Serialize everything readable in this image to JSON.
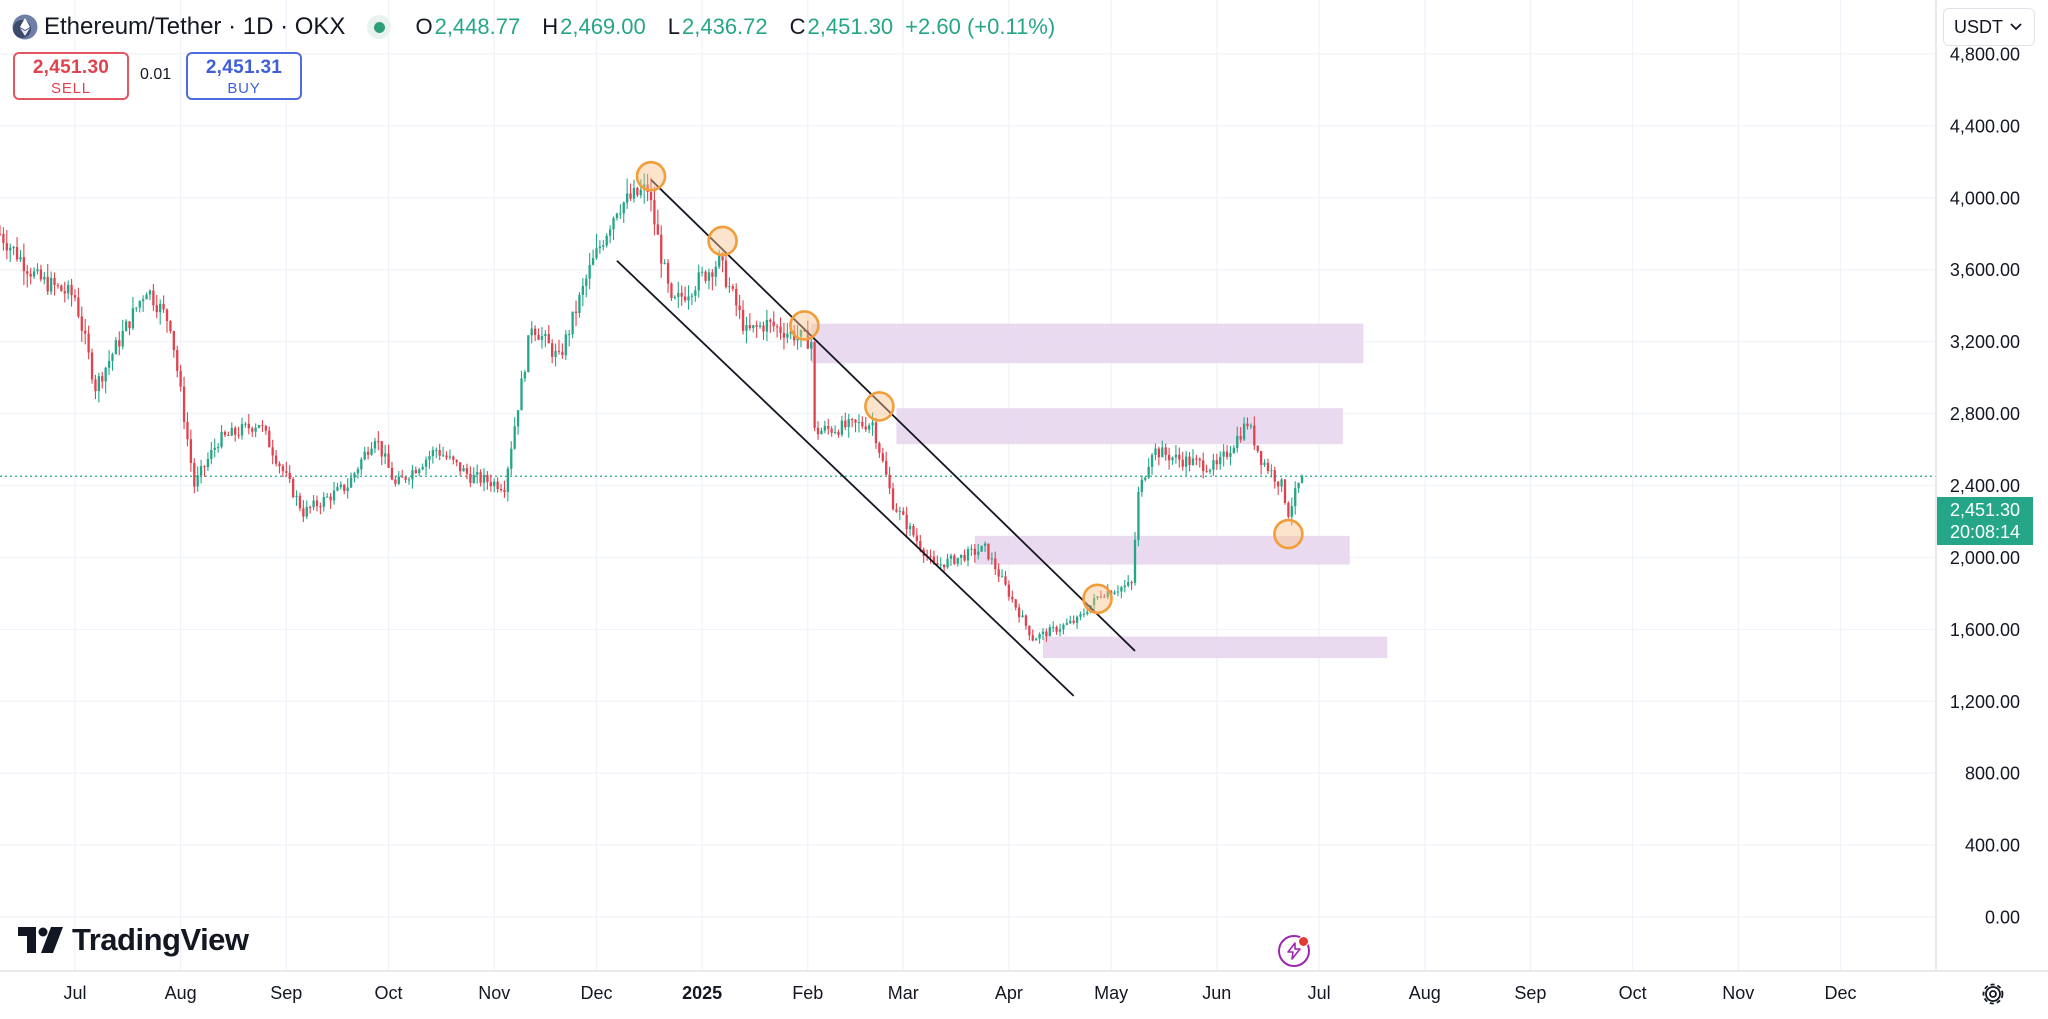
{
  "header": {
    "title": "Ethereum/Tether · 1D · OKX",
    "ohlc": [
      {
        "k": "O",
        "v": "2,448.77"
      },
      {
        "k": "H",
        "v": "2,469.00"
      },
      {
        "k": "L",
        "v": "2,436.72"
      },
      {
        "k": "C",
        "v": "2,451.30"
      }
    ],
    "change": "+2.60 (+0.11%)"
  },
  "trade": {
    "sell_price": "2,451.30",
    "sell_label": "SELL",
    "spread": "0.01",
    "buy_price": "2,451.31",
    "buy_label": "BUY"
  },
  "currency": "USDT",
  "last_price": {
    "price": "2,451.30",
    "countdown": "20:08:14"
  },
  "branding": {
    "logo_text": "TradingView"
  },
  "icons": {
    "settings": "gear-icon",
    "alerts": "flash-icon",
    "dropdown": "chevron-down-icon"
  },
  "colors": {
    "up": "#26a688",
    "down": "#e0434f",
    "zone": "#e6d3ed",
    "marker": "#f29d38",
    "sell": "#e0434f",
    "buy": "#3f5fda"
  },
  "chart_data": {
    "type": "candlestick",
    "title": "Ethereum/Tether · 1D · OKX",
    "ylim": [
      -300,
      5100
    ],
    "y_ticks": [
      0,
      400,
      800,
      1200,
      1600,
      2000,
      2400,
      2800,
      3200,
      3600,
      4000,
      4400,
      4800
    ],
    "y_tick_labels": [
      "0.00",
      "400.00",
      "800.00",
      "1,200.00",
      "1,600.00",
      "2,000.00",
      "2,400.00",
      "2,800.00",
      "3,200.00",
      "3,600.00",
      "4,000.00",
      "4,400.00",
      "4,800.00"
    ],
    "x_range": [
      "2024-06-09",
      "2025-12-29"
    ],
    "x_ticks": [
      {
        "date": "2024-07-01",
        "label": "Jul",
        "bold": false
      },
      {
        "date": "2024-08-01",
        "label": "Aug",
        "bold": false
      },
      {
        "date": "2024-09-01",
        "label": "Sep",
        "bold": false
      },
      {
        "date": "2024-10-01",
        "label": "Oct",
        "bold": false
      },
      {
        "date": "2024-11-01",
        "label": "Nov",
        "bold": false
      },
      {
        "date": "2024-12-01",
        "label": "Dec",
        "bold": false
      },
      {
        "date": "2025-01-01",
        "label": "2025",
        "bold": true
      },
      {
        "date": "2025-02-01",
        "label": "Feb",
        "bold": false
      },
      {
        "date": "2025-03-01",
        "label": "Mar",
        "bold": false
      },
      {
        "date": "2025-04-01",
        "label": "Apr",
        "bold": false
      },
      {
        "date": "2025-05-01",
        "label": "May",
        "bold": false
      },
      {
        "date": "2025-06-01",
        "label": "Jun",
        "bold": false
      },
      {
        "date": "2025-07-01",
        "label": "Jul",
        "bold": false
      },
      {
        "date": "2025-08-01",
        "label": "Aug",
        "bold": false
      },
      {
        "date": "2025-09-01",
        "label": "Sep",
        "bold": false
      },
      {
        "date": "2025-10-01",
        "label": "Oct",
        "bold": false
      },
      {
        "date": "2025-11-01",
        "label": "Nov",
        "bold": false
      },
      {
        "date": "2025-12-01",
        "label": "Dec",
        "bold": false
      }
    ],
    "price_path": [
      [
        "2024-06-09",
        3800
      ],
      [
        "2024-06-20",
        3550
      ],
      [
        "2024-07-01",
        3450
      ],
      [
        "2024-07-07",
        2950
      ],
      [
        "2024-07-22",
        3500
      ],
      [
        "2024-07-29",
        3300
      ],
      [
        "2024-08-05",
        2400
      ],
      [
        "2024-08-12",
        2650
      ],
      [
        "2024-08-24",
        2750
      ],
      [
        "2024-09-06",
        2250
      ],
      [
        "2024-09-19",
        2400
      ],
      [
        "2024-09-27",
        2680
      ],
      [
        "2024-10-03",
        2400
      ],
      [
        "2024-10-15",
        2600
      ],
      [
        "2024-10-25",
        2450
      ],
      [
        "2024-11-04",
        2400
      ],
      [
        "2024-11-12",
        3300
      ],
      [
        "2024-11-20",
        3100
      ],
      [
        "2024-11-29",
        3600
      ],
      [
        "2024-12-07",
        3950
      ],
      [
        "2024-12-16",
        4050
      ],
      [
        "2024-12-23",
        3400
      ],
      [
        "2025-01-06",
        3650
      ],
      [
        "2025-01-14",
        3250
      ],
      [
        "2025-01-20",
        3300
      ],
      [
        "2025-02-02",
        3200
      ],
      [
        "2025-02-03",
        2700
      ],
      [
        "2025-02-20",
        2750
      ],
      [
        "2025-02-26",
        2300
      ],
      [
        "2025-03-10",
        1950
      ],
      [
        "2025-03-25",
        2050
      ],
      [
        "2025-04-08",
        1550
      ],
      [
        "2025-04-21",
        1650
      ],
      [
        "2025-04-28",
        1800
      ],
      [
        "2025-05-07",
        1850
      ],
      [
        "2025-05-09",
        2350
      ],
      [
        "2025-05-13",
        2600
      ],
      [
        "2025-05-20",
        2550
      ],
      [
        "2025-06-01",
        2500
      ],
      [
        "2025-06-10",
        2750
      ],
      [
        "2025-06-14",
        2550
      ],
      [
        "2025-06-20",
        2400
      ],
      [
        "2025-06-22",
        2250
      ],
      [
        "2025-06-26",
        2451.3
      ]
    ],
    "last_price": 2451.3,
    "last_price_label": "2,451.30",
    "channel_lines": [
      {
        "from": [
          "2024-12-17",
          4100
        ],
        "to": [
          "2025-05-08",
          1480
        ]
      },
      {
        "from": [
          "2024-12-07",
          3650
        ],
        "to": [
          "2025-04-20",
          1230
        ]
      }
    ],
    "zones": [
      {
        "from": "2025-02-02",
        "to": "2025-07-14",
        "low": 3080,
        "high": 3300
      },
      {
        "from": "2025-02-27",
        "to": "2025-07-08",
        "low": 2630,
        "high": 2830
      },
      {
        "from": "2025-03-22",
        "to": "2025-07-10",
        "low": 1960,
        "high": 2120
      },
      {
        "from": "2025-04-11",
        "to": "2025-07-21",
        "low": 1440,
        "high": 1560
      }
    ],
    "markers": [
      {
        "date": "2024-12-17",
        "price": 4120
      },
      {
        "date": "2025-01-07",
        "price": 3760
      },
      {
        "date": "2025-01-31",
        "price": 3290
      },
      {
        "date": "2025-02-22",
        "price": 2840
      },
      {
        "date": "2025-04-27",
        "price": 1770
      },
      {
        "date": "2025-06-22",
        "price": 2130
      }
    ]
  }
}
